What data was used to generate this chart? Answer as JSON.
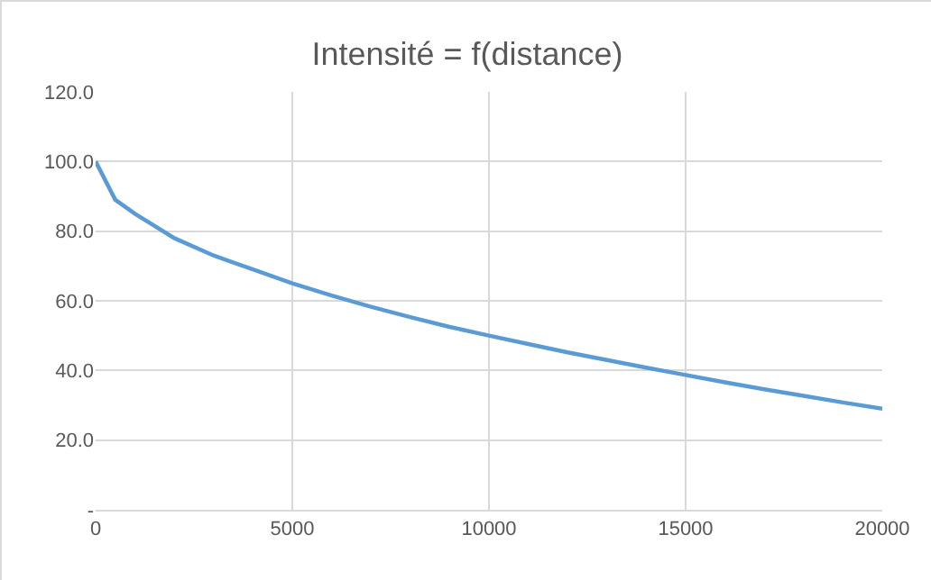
{
  "chart_data": {
    "type": "line",
    "title": "Intensité = f(distance)",
    "x": [
      0,
      500,
      1000,
      2000,
      3000,
      4000,
      5000,
      6000,
      7000,
      8000,
      9000,
      10000,
      11000,
      12000,
      13000,
      14000,
      15000,
      16000,
      17000,
      18000,
      19000,
      20000
    ],
    "series": [
      {
        "color": "#5b9bd5",
        "values": [
          100,
          89,
          85,
          78,
          73,
          69,
          65,
          61.5,
          58.3,
          55.3,
          52.5,
          50,
          47.6,
          45.2,
          43,
          40.8,
          38.7,
          36.6,
          34.6,
          32.7,
          30.8,
          29
        ]
      }
    ],
    "xlim": [
      0,
      20000
    ],
    "xticks": [
      0,
      5000,
      10000,
      15000,
      20000
    ],
    "ylim": [
      0,
      120
    ],
    "yticks": [
      {
        "value": 0,
        "label": "-"
      },
      {
        "value": 20,
        "label": "20.0"
      },
      {
        "value": 40,
        "label": "40.0"
      },
      {
        "value": 60,
        "label": "60.0"
      },
      {
        "value": 80,
        "label": "80.0"
      },
      {
        "value": 100,
        "label": "100.0"
      },
      {
        "value": 120,
        "label": "120.0"
      }
    ],
    "grid": true,
    "marker": "none",
    "line_style": "solid"
  }
}
